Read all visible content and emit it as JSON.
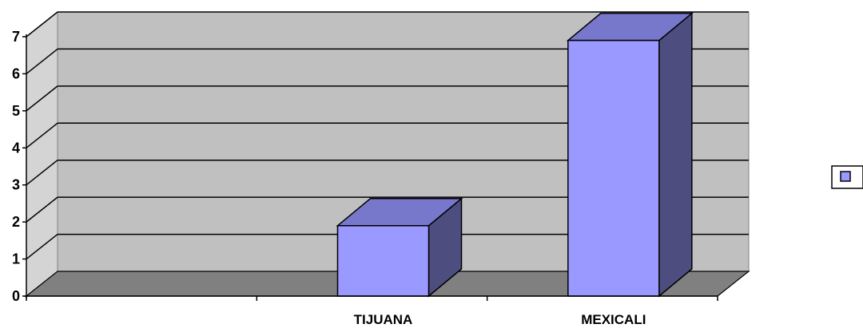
{
  "chart_data": {
    "type": "bar",
    "style": "3d-column",
    "categories": [
      "",
      "TIJUANA",
      "MEXICALI"
    ],
    "series": [
      {
        "values": [
          0,
          1.9,
          6.9
        ]
      }
    ],
    "ylim": [
      0,
      7
    ],
    "yticks": [
      "0",
      "1",
      "2",
      "3",
      "4",
      "5",
      "6",
      "7"
    ],
    "grid": true,
    "legend_position": "right",
    "colors": {
      "bar_front": "#9999ff",
      "bar_top": "#7777cc",
      "bar_side": "#4d4d80",
      "back_wall": "#c0c0c0",
      "side_wall": "#d4d4d4",
      "floor": "#808080",
      "gridline": "#000000"
    }
  }
}
